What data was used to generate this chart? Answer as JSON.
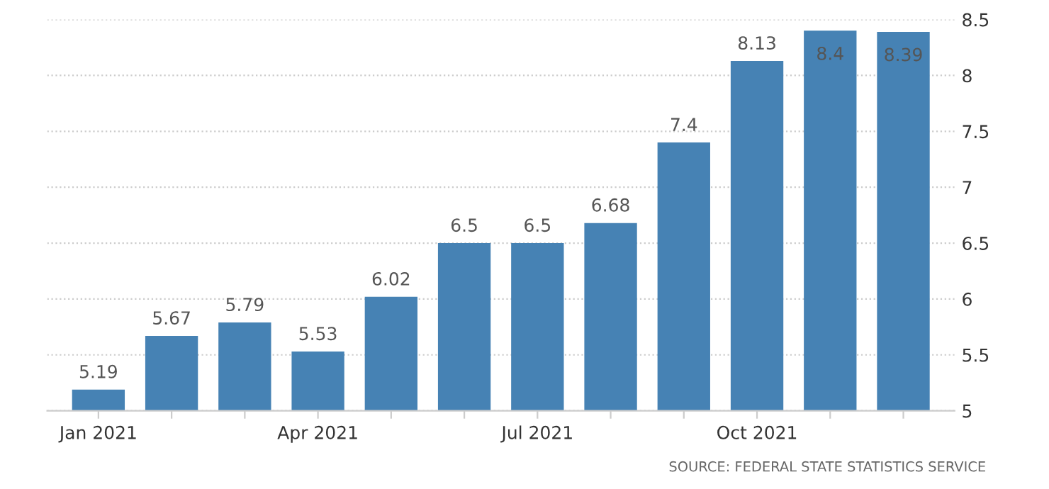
{
  "chart_data": {
    "type": "bar",
    "categories": [
      "Jan 2021",
      null,
      null,
      "Apr 2021",
      null,
      null,
      "Jul 2021",
      null,
      null,
      "Oct 2021",
      null,
      null
    ],
    "values": [
      5.19,
      5.67,
      5.79,
      5.53,
      6.02,
      6.5,
      6.5,
      6.68,
      7.4,
      8.13,
      8.4,
      8.39
    ],
    "color": "#4682b4",
    "ylim": [
      5,
      8.5
    ],
    "yticks": [
      5,
      5.5,
      6,
      6.5,
      7,
      7.5,
      8,
      8.5
    ],
    "grid": "y",
    "data_labels": true,
    "annotations": [
      "SOURCE: FEDERAL STATE STATISTICS SERVICE"
    ]
  }
}
